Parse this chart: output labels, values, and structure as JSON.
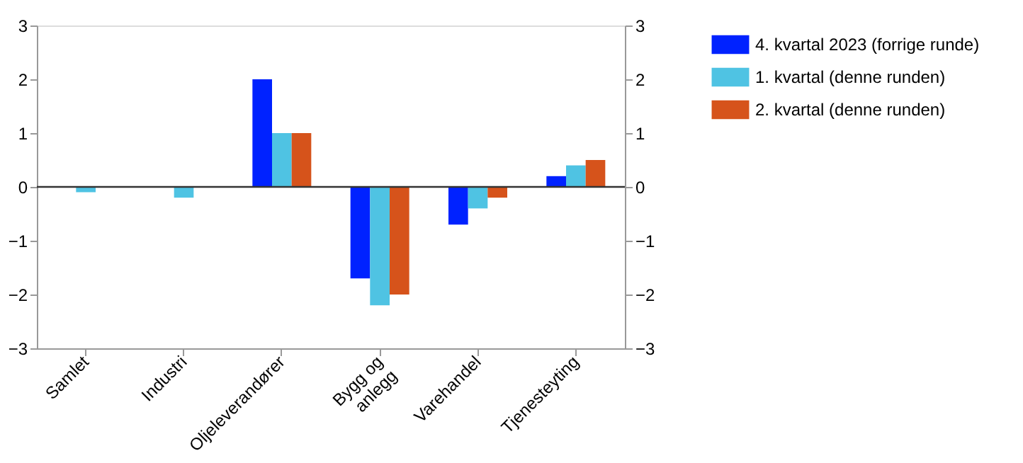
{
  "chart_data": {
    "type": "bar",
    "categories": [
      "Samlet",
      "Industri",
      "Oljeleverandører",
      "Bygg og\nanlegg",
      "Varehandel",
      "Tjenesteyting"
    ],
    "series": [
      {
        "name": "4. kvartal 2023 (forrige runde)",
        "color": "#0022ff",
        "values": [
          0,
          0,
          2.0,
          -1.7,
          -0.7,
          0.2
        ]
      },
      {
        "name": "1. kvartal (denne runden)",
        "color": "#4fc3e3",
        "values": [
          -0.1,
          -0.2,
          1.0,
          -2.2,
          -0.4,
          0.4
        ]
      },
      {
        "name": "2. kvartal (denne runden)",
        "color": "#d6531b",
        "values": [
          0,
          0,
          1.0,
          -2.0,
          -0.2,
          0.5
        ]
      }
    ],
    "ylim": [
      -3,
      3
    ],
    "yticks": [
      -3,
      -2,
      -1,
      0,
      1,
      2,
      3
    ],
    "y2lim": [
      -3,
      3
    ],
    "y2ticks": [
      -3,
      -2,
      -1,
      0,
      1,
      2,
      3
    ],
    "ref_lines": [
      {
        "axis": "y",
        "value": 0,
        "color": "#333333"
      }
    ],
    "grid": false,
    "legend": "right"
  }
}
